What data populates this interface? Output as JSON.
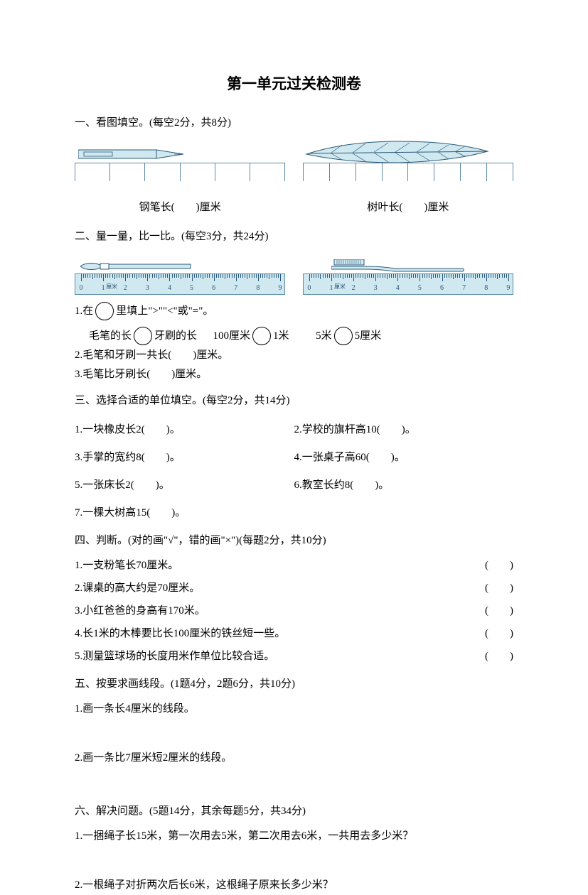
{
  "title": "第一单元过关检测卷",
  "q1": {
    "header": "一、看图填空。(每空2分，共8分)",
    "item1_text": "钢笔长(　　)厘米",
    "item2_text": "树叶长(　　)厘米",
    "colors": {
      "ruler_line": "#5a8aa8",
      "object_fill": "#d0e8f0",
      "object_stroke": "#2a5a78"
    }
  },
  "q2": {
    "header": "二、量一量，比一比。(每空3分，共24分)",
    "ruler_numbers": [
      "0",
      "1",
      "2",
      "3",
      "4",
      "5",
      "6",
      "7",
      "8",
      "9"
    ],
    "cm_label": "厘米",
    "line1_pre": "1.在",
    "line1_post": "里填上\">\"\"<\"或\"=\"。",
    "comp1_left": "毛笔的长",
    "comp1_right": "牙刷的长",
    "comp2_left": "100厘米",
    "comp2_right": "1米",
    "comp3_left": "5米",
    "comp3_right": "5厘米",
    "line3a": "2.毛笔和牙刷一共长(　　)厘米。",
    "line3b": "3.毛笔比牙刷长(　　)厘米。",
    "colors": {
      "ruler_bg": "#d0e8f0",
      "ruler_border": "#5a8aa8",
      "tick": "#2a5a78"
    }
  },
  "q3": {
    "header": "三、选择合适的单位填空。(每空2分，共14分)",
    "items": [
      "1.一块橡皮长2(　　)。",
      "2.学校的旗杆高10(　　)。",
      "3.手掌的宽约8(　　)。",
      "4.一张桌子高60(　　)。"
    ],
    "items_row2": [
      "5.一张床长2(　　)。",
      "6.教室长约8(　　)。"
    ],
    "item7": "7.一棵大树高15(　　)。"
  },
  "q4": {
    "header": "四、判断。(对的画\"√\"，错的画\"×\")(每题2分，共10分)",
    "items": [
      "1.一支粉笔长70厘米。",
      "2.课桌的高大约是70厘米。",
      "3.小红爸爸的身高有170米。",
      "4.长1米的木棒要比长100厘米的铁丝短一些。",
      "5.测量篮球场的长度用米作单位比较合适。"
    ]
  },
  "q5": {
    "header": "五、按要求画线段。(1题4分，2题6分，共10分)",
    "sub1": "1.画一条长4厘米的线段。",
    "sub2": "2.画一条比7厘米短2厘米的线段。"
  },
  "q6": {
    "header": "六、解决问题。(5题14分，其余每题5分，共34分)",
    "sub1_q": "1.一捆绳子长15米，第一次用去5米，第二次用去6米，一共用去多少米？",
    "sub2_q": "2.一根绳子对折两次后长6米，这根绳子原来长多少米？"
  }
}
